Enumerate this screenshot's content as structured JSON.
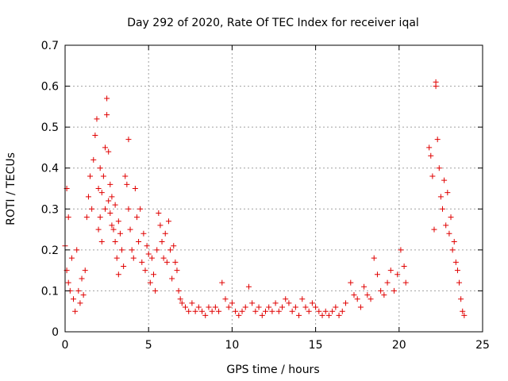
{
  "chart_data": {
    "type": "scatter",
    "title": "Day 292 of 2020, Rate Of TEC Index for receiver iqal",
    "xlabel": "GPS time / hours",
    "ylabel": "ROTI / TECUs",
    "xlim": [
      0,
      25
    ],
    "ylim": [
      0,
      0.7
    ],
    "xticks": [
      0,
      5,
      10,
      15,
      20,
      25
    ],
    "yticks": [
      0,
      0.1,
      0.2,
      0.3,
      0.4,
      0.5,
      0.6,
      0.7
    ],
    "xtick_labels": [
      "0",
      "5",
      "10",
      "15",
      "20",
      "25"
    ],
    "ytick_labels": [
      "0",
      "0.1",
      "0.2",
      "0.3",
      "0.4",
      "0.5",
      "0.6",
      "0.7"
    ],
    "grid": true,
    "legend": "none",
    "marker": "+",
    "color": "#e00000",
    "series": [
      {
        "x": [
          0.0,
          0.1,
          0.1,
          0.2,
          0.2,
          0.3,
          0.4,
          0.5,
          0.6,
          0.7,
          0.8,
          0.9,
          1.0,
          1.1,
          1.2,
          1.3,
          1.4,
          1.5,
          1.6,
          1.7,
          1.8,
          1.9,
          2.0,
          2.0,
          2.1,
          2.1,
          2.2,
          2.2,
          2.3,
          2.4,
          2.4,
          2.5,
          2.5,
          2.6,
          2.6,
          2.7,
          2.7,
          2.8,
          2.8,
          2.9,
          3.0,
          3.0,
          3.1,
          3.2,
          3.2,
          3.3,
          3.4,
          3.5,
          3.6,
          3.7,
          3.8,
          3.8,
          3.9,
          4.0,
          4.1,
          4.2,
          4.3,
          4.4,
          4.5,
          4.6,
          4.7,
          4.8,
          4.9,
          5.0,
          5.1,
          5.2,
          5.3,
          5.4,
          5.5,
          5.6,
          5.7,
          5.8,
          5.9,
          6.0,
          6.1,
          6.2,
          6.3,
          6.4,
          6.5,
          6.6,
          6.7,
          6.8,
          6.9,
          7.0,
          7.2,
          7.4,
          7.6,
          7.8,
          8.0,
          8.2,
          8.4,
          8.6,
          8.8,
          9.0,
          9.2,
          9.4,
          9.6,
          9.8,
          10.0,
          10.2,
          10.4,
          10.6,
          10.8,
          11.0,
          11.2,
          11.4,
          11.6,
          11.8,
          12.0,
          12.2,
          12.4,
          12.6,
          12.8,
          13.0,
          13.2,
          13.4,
          13.6,
          13.8,
          14.0,
          14.2,
          14.4,
          14.6,
          14.8,
          15.0,
          15.2,
          15.4,
          15.6,
          15.8,
          16.0,
          16.2,
          16.4,
          16.6,
          16.8,
          17.1,
          17.3,
          17.5,
          17.7,
          17.9,
          18.1,
          18.3,
          18.5,
          18.7,
          18.9,
          19.1,
          19.3,
          19.5,
          19.7,
          19.9,
          20.1,
          20.3,
          20.4,
          21.8,
          21.9,
          22.0,
          22.1,
          22.2,
          22.2,
          22.3,
          22.4,
          22.5,
          22.6,
          22.7,
          22.8,
          22.9,
          23.0,
          23.1,
          23.2,
          23.3,
          23.4,
          23.5,
          23.6,
          23.7,
          23.8,
          23.9
        ],
        "y": [
          0.21,
          0.15,
          0.35,
          0.28,
          0.12,
          0.1,
          0.18,
          0.08,
          0.05,
          0.2,
          0.1,
          0.07,
          0.13,
          0.09,
          0.15,
          0.28,
          0.33,
          0.38,
          0.3,
          0.42,
          0.48,
          0.52,
          0.35,
          0.25,
          0.4,
          0.28,
          0.34,
          0.22,
          0.38,
          0.45,
          0.3,
          0.57,
          0.53,
          0.44,
          0.32,
          0.29,
          0.36,
          0.26,
          0.33,
          0.25,
          0.31,
          0.22,
          0.18,
          0.27,
          0.14,
          0.24,
          0.2,
          0.16,
          0.38,
          0.36,
          0.47,
          0.3,
          0.25,
          0.2,
          0.18,
          0.35,
          0.28,
          0.22,
          0.3,
          0.17,
          0.24,
          0.15,
          0.21,
          0.19,
          0.12,
          0.18,
          0.14,
          0.1,
          0.2,
          0.29,
          0.26,
          0.22,
          0.18,
          0.24,
          0.17,
          0.27,
          0.2,
          0.13,
          0.21,
          0.17,
          0.15,
          0.1,
          0.08,
          0.07,
          0.06,
          0.05,
          0.07,
          0.05,
          0.06,
          0.05,
          0.04,
          0.06,
          0.05,
          0.06,
          0.05,
          0.12,
          0.08,
          0.06,
          0.07,
          0.05,
          0.04,
          0.05,
          0.06,
          0.11,
          0.07,
          0.05,
          0.06,
          0.04,
          0.05,
          0.06,
          0.05,
          0.07,
          0.05,
          0.06,
          0.08,
          0.07,
          0.05,
          0.06,
          0.04,
          0.08,
          0.06,
          0.05,
          0.07,
          0.06,
          0.05,
          0.04,
          0.05,
          0.04,
          0.05,
          0.06,
          0.04,
          0.05,
          0.07,
          0.12,
          0.09,
          0.08,
          0.06,
          0.11,
          0.09,
          0.08,
          0.18,
          0.14,
          0.1,
          0.09,
          0.12,
          0.15,
          0.1,
          0.14,
          0.2,
          0.16,
          0.12,
          0.45,
          0.43,
          0.38,
          0.25,
          0.61,
          0.6,
          0.47,
          0.4,
          0.33,
          0.3,
          0.37,
          0.26,
          0.34,
          0.24,
          0.28,
          0.2,
          0.22,
          0.17,
          0.15,
          0.12,
          0.08,
          0.05,
          0.04
        ]
      }
    ]
  }
}
